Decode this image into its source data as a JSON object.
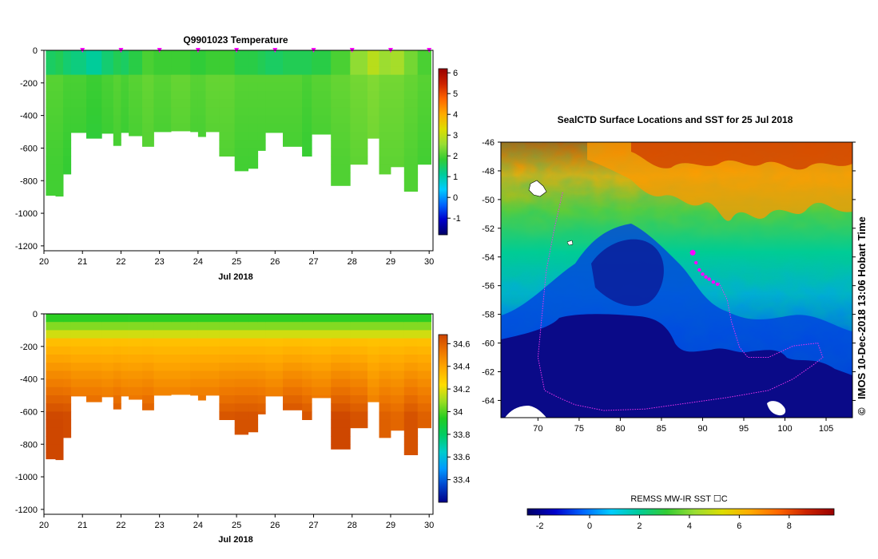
{
  "colors": {
    "sst_scale": [
      "#000066",
      "#0000cc",
      "#0066ff",
      "#00ccff",
      "#00cc99",
      "#33cc33",
      "#99dd33",
      "#dddd00",
      "#ffaa00",
      "#ff6600",
      "#cc2200",
      "#990000"
    ],
    "salt_scale": [
      "#000088",
      "#0044cc",
      "#0099ff",
      "#00cccc",
      "#00cc66",
      "#22cc22",
      "#99dd22",
      "#ffdd00",
      "#ffaa00",
      "#ee7700",
      "#cc4400"
    ],
    "land": "#ffffff",
    "track": "#ee33ee",
    "surface_marker": "#ff00ff"
  },
  "chart_data": [
    {
      "type": "heatmap",
      "id": "temperature",
      "title": "Q9901023  Temperature",
      "xlabel": "Jul 2018",
      "ylabel": "",
      "xlim": [
        20,
        30.1
      ],
      "ylim": [
        -1230,
        0
      ],
      "x_ticks": [
        "20",
        "21",
        "22",
        "23",
        "24",
        "25",
        "26",
        "27",
        "28",
        "29",
        "30"
      ],
      "y_ticks": [
        "0",
        "-200",
        "-400",
        "-600",
        "-800",
        "-1000",
        "-1200"
      ],
      "surface_markers_day": [
        21.0,
        22.0,
        23.0,
        24.0,
        25.0,
        26.0,
        27.0,
        28.0,
        29.0,
        30.0
      ],
      "colorbar": {
        "min": -1.8,
        "max": 6.2,
        "ticks": [
          "6",
          "5",
          "4",
          "3",
          "2",
          "1",
          "0",
          "-1"
        ]
      },
      "profiles": [
        {
          "t0": 20.05,
          "t1": 20.3,
          "max_depth": 890,
          "surface": 1.5,
          "deep": 2.1
        },
        {
          "t0": 20.3,
          "t1": 20.5,
          "max_depth": 895,
          "surface": 1.6,
          "deep": 2.1
        },
        {
          "t0": 20.5,
          "t1": 20.7,
          "max_depth": 760,
          "surface": 1.4,
          "deep": 2.0
        },
        {
          "t0": 20.7,
          "t1": 21.1,
          "max_depth": 505,
          "surface": 1.3,
          "deep": 2.0
        },
        {
          "t0": 21.1,
          "t1": 21.5,
          "max_depth": 540,
          "surface": 1.1,
          "deep": 1.9
        },
        {
          "t0": 21.5,
          "t1": 21.8,
          "max_depth": 510,
          "surface": 1.4,
          "deep": 2.0
        },
        {
          "t0": 21.8,
          "t1": 22.0,
          "max_depth": 585,
          "surface": 1.6,
          "deep": 2.1
        },
        {
          "t0": 22.0,
          "t1": 22.2,
          "max_depth": 505,
          "surface": 1.5,
          "deep": 2.0
        },
        {
          "t0": 22.2,
          "t1": 22.55,
          "max_depth": 525,
          "surface": 1.7,
          "deep": 2.1
        },
        {
          "t0": 22.55,
          "t1": 22.85,
          "max_depth": 590,
          "surface": 2.0,
          "deep": 2.2
        },
        {
          "t0": 22.85,
          "t1": 23.3,
          "max_depth": 500,
          "surface": 1.9,
          "deep": 2.1
        },
        {
          "t0": 23.3,
          "t1": 23.8,
          "max_depth": 495,
          "surface": 1.9,
          "deep": 2.2
        },
        {
          "t0": 23.8,
          "t1": 24.0,
          "max_depth": 500,
          "surface": 1.8,
          "deep": 2.1
        },
        {
          "t0": 24.0,
          "t1": 24.2,
          "max_depth": 530,
          "surface": 1.8,
          "deep": 2.1
        },
        {
          "t0": 24.2,
          "t1": 24.55,
          "max_depth": 500,
          "surface": 1.9,
          "deep": 2.2
        },
        {
          "t0": 24.55,
          "t1": 24.95,
          "max_depth": 650,
          "surface": 1.9,
          "deep": 2.2
        },
        {
          "t0": 24.95,
          "t1": 25.3,
          "max_depth": 740,
          "surface": 1.7,
          "deep": 2.1
        },
        {
          "t0": 25.3,
          "t1": 25.55,
          "max_depth": 725,
          "surface": 1.7,
          "deep": 2.1
        },
        {
          "t0": 25.55,
          "t1": 25.75,
          "max_depth": 615,
          "surface": 1.6,
          "deep": 2.1
        },
        {
          "t0": 25.75,
          "t1": 26.2,
          "max_depth": 505,
          "surface": 1.5,
          "deep": 2.1
        },
        {
          "t0": 26.2,
          "t1": 26.7,
          "max_depth": 590,
          "surface": 1.6,
          "deep": 2.1
        },
        {
          "t0": 26.7,
          "t1": 26.95,
          "max_depth": 650,
          "surface": 1.6,
          "deep": 2.0
        },
        {
          "t0": 26.95,
          "t1": 27.45,
          "max_depth": 515,
          "surface": 1.7,
          "deep": 2.1
        },
        {
          "t0": 27.45,
          "t1": 27.95,
          "max_depth": 830,
          "surface": 2.0,
          "deep": 2.2
        },
        {
          "t0": 27.95,
          "t1": 28.4,
          "max_depth": 700,
          "surface": 2.5,
          "deep": 2.3
        },
        {
          "t0": 28.4,
          "t1": 28.7,
          "max_depth": 540,
          "surface": 2.9,
          "deep": 2.4
        },
        {
          "t0": 28.7,
          "t1": 29.0,
          "max_depth": 760,
          "surface": 2.6,
          "deep": 2.3
        },
        {
          "t0": 29.0,
          "t1": 29.35,
          "max_depth": 715,
          "surface": 2.7,
          "deep": 2.3
        },
        {
          "t0": 29.35,
          "t1": 29.7,
          "max_depth": 865,
          "surface": 2.3,
          "deep": 2.2
        },
        {
          "t0": 29.7,
          "t1": 30.05,
          "max_depth": 700,
          "surface": 2.0,
          "deep": 2.1
        }
      ]
    },
    {
      "type": "heatmap",
      "id": "salinity",
      "title": "",
      "xlabel": "Jul 2018",
      "ylabel": "",
      "xlim": [
        20,
        30.1
      ],
      "ylim": [
        -1230,
        0
      ],
      "x_ticks": [
        "20",
        "21",
        "22",
        "23",
        "24",
        "25",
        "26",
        "27",
        "28",
        "29",
        "30"
      ],
      "y_ticks": [
        "0",
        "-200",
        "-400",
        "-600",
        "-800",
        "-1000",
        "-1200"
      ],
      "colorbar": {
        "min": 33.2,
        "max": 34.68,
        "ticks": [
          "34.6",
          "34.4",
          "34.2",
          "34",
          "33.8",
          "33.6",
          "33.4"
        ]
      },
      "profiles": [
        {
          "t0": 20.05,
          "t1": 20.3,
          "max_depth": 890,
          "surface": 33.9,
          "deep": 34.67
        },
        {
          "t0": 20.3,
          "t1": 20.5,
          "max_depth": 895,
          "surface": 33.9,
          "deep": 34.67
        },
        {
          "t0": 20.5,
          "t1": 20.7,
          "max_depth": 760,
          "surface": 33.9,
          "deep": 34.66
        },
        {
          "t0": 20.7,
          "t1": 21.1,
          "max_depth": 505,
          "surface": 33.9,
          "deep": 34.62
        },
        {
          "t0": 21.1,
          "t1": 21.5,
          "max_depth": 540,
          "surface": 33.9,
          "deep": 34.62
        },
        {
          "t0": 21.5,
          "t1": 21.8,
          "max_depth": 510,
          "surface": 33.9,
          "deep": 34.6
        },
        {
          "t0": 21.8,
          "t1": 22.0,
          "max_depth": 585,
          "surface": 33.9,
          "deep": 34.63
        },
        {
          "t0": 22.0,
          "t1": 22.2,
          "max_depth": 505,
          "surface": 33.9,
          "deep": 34.6
        },
        {
          "t0": 22.2,
          "t1": 22.55,
          "max_depth": 525,
          "surface": 33.9,
          "deep": 34.6
        },
        {
          "t0": 22.55,
          "t1": 22.85,
          "max_depth": 590,
          "surface": 33.9,
          "deep": 34.62
        },
        {
          "t0": 22.85,
          "t1": 23.3,
          "max_depth": 500,
          "surface": 33.9,
          "deep": 34.58
        },
        {
          "t0": 23.3,
          "t1": 23.8,
          "max_depth": 495,
          "surface": 33.9,
          "deep": 34.58
        },
        {
          "t0": 23.8,
          "t1": 24.0,
          "max_depth": 500,
          "surface": 33.9,
          "deep": 34.6
        },
        {
          "t0": 24.0,
          "t1": 24.2,
          "max_depth": 530,
          "surface": 33.9,
          "deep": 34.6
        },
        {
          "t0": 24.2,
          "t1": 24.55,
          "max_depth": 500,
          "surface": 33.9,
          "deep": 34.6
        },
        {
          "t0": 24.55,
          "t1": 24.95,
          "max_depth": 650,
          "surface": 33.9,
          "deep": 34.63
        },
        {
          "t0": 24.95,
          "t1": 25.3,
          "max_depth": 740,
          "surface": 33.9,
          "deep": 34.64
        },
        {
          "t0": 25.3,
          "t1": 25.55,
          "max_depth": 725,
          "surface": 33.9,
          "deep": 34.64
        },
        {
          "t0": 25.55,
          "t1": 25.75,
          "max_depth": 615,
          "surface": 33.9,
          "deep": 34.63
        },
        {
          "t0": 25.75,
          "t1": 26.2,
          "max_depth": 505,
          "surface": 33.9,
          "deep": 34.6
        },
        {
          "t0": 26.2,
          "t1": 26.7,
          "max_depth": 590,
          "surface": 33.9,
          "deep": 34.66
        },
        {
          "t0": 26.7,
          "t1": 26.95,
          "max_depth": 650,
          "surface": 33.9,
          "deep": 34.63
        },
        {
          "t0": 26.95,
          "t1": 27.45,
          "max_depth": 515,
          "surface": 33.9,
          "deep": 34.6
        },
        {
          "t0": 27.45,
          "t1": 27.95,
          "max_depth": 830,
          "surface": 33.9,
          "deep": 34.67
        },
        {
          "t0": 27.95,
          "t1": 28.4,
          "max_depth": 700,
          "surface": 33.9,
          "deep": 34.64
        },
        {
          "t0": 28.4,
          "t1": 28.7,
          "max_depth": 540,
          "surface": 33.9,
          "deep": 34.55
        },
        {
          "t0": 28.7,
          "t1": 29.0,
          "max_depth": 760,
          "surface": 33.9,
          "deep": 34.6
        },
        {
          "t0": 29.0,
          "t1": 29.35,
          "max_depth": 715,
          "surface": 33.9,
          "deep": 34.58
        },
        {
          "t0": 29.35,
          "t1": 29.7,
          "max_depth": 865,
          "surface": 33.9,
          "deep": 34.64
        },
        {
          "t0": 29.7,
          "t1": 30.05,
          "max_depth": 700,
          "surface": 33.9,
          "deep": 34.6
        }
      ]
    },
    {
      "type": "heatmap",
      "id": "sst_map",
      "title": "SealCTD Surface Locations and SST for 25 Jul 2018",
      "xlabel": "",
      "ylabel": "",
      "xlim": [
        65.5,
        108.2
      ],
      "ylim": [
        -65.2,
        -46
      ],
      "x_ticks": [
        "70",
        "75",
        "80",
        "85",
        "90",
        "95",
        "100",
        "105"
      ],
      "y_ticks": [
        "-46",
        "-48",
        "-50",
        "-52",
        "-54",
        "-56",
        "-58",
        "-60",
        "-62",
        "-64"
      ],
      "colorbar": {
        "label": "REMSS MW-IR SST ☐C",
        "min": -2.5,
        "max": 9.8,
        "ticks": [
          "-2",
          "0",
          "2",
          "4",
          "6",
          "8"
        ]
      },
      "track": [
        [
          73.0,
          -49.5
        ],
        [
          72.0,
          -52
        ],
        [
          71.0,
          -55
        ],
        [
          70.5,
          -58
        ],
        [
          70.0,
          -61
        ],
        [
          70.8,
          -63.3
        ],
        [
          72.5,
          -63.8
        ],
        [
          74.5,
          -64.3
        ],
        [
          78,
          -64.7
        ],
        [
          83,
          -64.6
        ],
        [
          88,
          -64.2
        ],
        [
          93,
          -63.8
        ],
        [
          98,
          -63.3
        ],
        [
          101,
          -62.5
        ],
        [
          103.5,
          -61.5
        ],
        [
          104.6,
          -61.0
        ],
        [
          104,
          -60
        ],
        [
          101,
          -60.2
        ],
        [
          98,
          -61.0
        ],
        [
          95.5,
          -61.0
        ],
        [
          94.5,
          -60.3
        ],
        [
          93.5,
          -58.5
        ],
        [
          93.0,
          -57.0
        ],
        [
          92.0,
          -55.8
        ]
      ],
      "surface_locations": [
        [
          88.8,
          -53.7
        ],
        [
          89.2,
          -54.4
        ],
        [
          89.6,
          -54.9
        ],
        [
          90.0,
          -55.2
        ],
        [
          90.4,
          -55.4
        ],
        [
          90.8,
          -55.55
        ],
        [
          91.3,
          -55.75
        ],
        [
          91.8,
          -55.9
        ]
      ]
    }
  ],
  "annotations": {
    "timestamp": "IMOS 10-Dec-2018 13:06 Hobart Time",
    "copyright": "©"
  }
}
